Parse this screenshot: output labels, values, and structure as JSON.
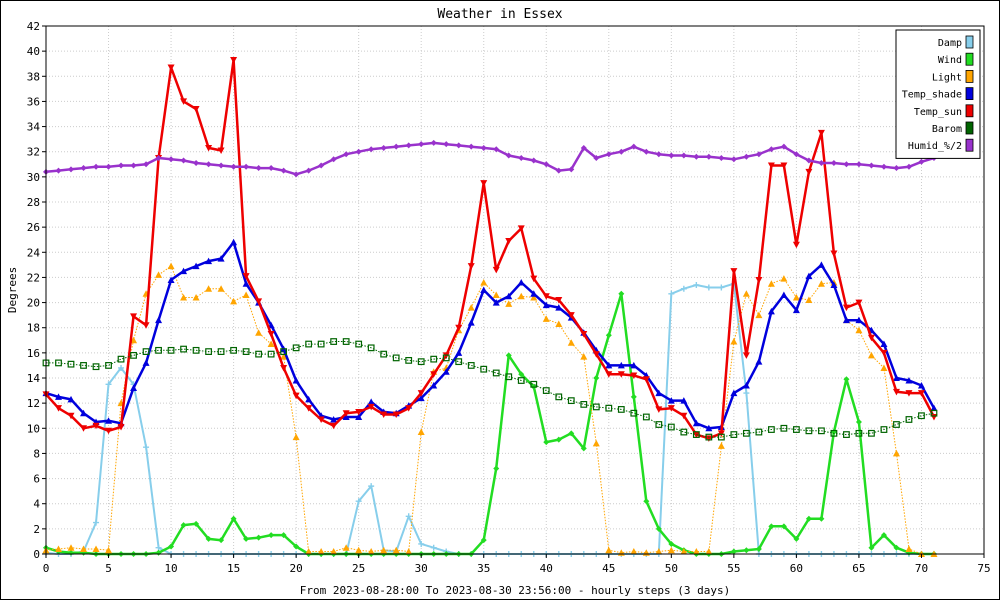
{
  "chart_data": {
    "type": "line",
    "title": "Weather in Essex",
    "xlabel": "From 2023-08-28:00 To 2023-08-30 23:56:00 - hourly steps (3 days)",
    "ylabel": "Degrees",
    "xlim": [
      0,
      75
    ],
    "ylim": [
      0,
      42
    ],
    "xticks": [
      "0",
      "5",
      "10",
      "15",
      "20",
      "25",
      "30",
      "35",
      "40",
      "45",
      "50",
      "55",
      "60",
      "65",
      "70",
      "75"
    ],
    "yticks": [
      "0",
      "2",
      "4",
      "6",
      "8",
      "10",
      "12",
      "14",
      "16",
      "18",
      "20",
      "22",
      "24",
      "26",
      "28",
      "30",
      "32",
      "34",
      "36",
      "38",
      "40",
      "42"
    ],
    "grid": true,
    "legend_position": "top-right",
    "series": [
      {
        "name": "Damp",
        "color": "#87ceeb",
        "marker": "plus",
        "style": "solid",
        "x": [
          0,
          1,
          2,
          3,
          4,
          5,
          6,
          7,
          8,
          9,
          10,
          11,
          12,
          13,
          14,
          15,
          16,
          17,
          18,
          19,
          20,
          21,
          22,
          23,
          24,
          25,
          26,
          27,
          28,
          29,
          30,
          31,
          32,
          33,
          34,
          35,
          36,
          37,
          38,
          39,
          40,
          41,
          42,
          43,
          44,
          45,
          46,
          47,
          48,
          49,
          50,
          51,
          52,
          53,
          54,
          55,
          56,
          57,
          58,
          59,
          60,
          61,
          62,
          63,
          64,
          65,
          66,
          67,
          68,
          69,
          70,
          71
        ],
        "values": [
          0.1,
          0,
          0,
          0.2,
          2.5,
          13.5,
          14.8,
          13.5,
          8.5,
          0.5,
          0,
          0,
          0,
          0,
          0,
          0,
          0,
          0,
          0,
          0,
          0,
          0,
          0,
          0,
          0,
          4.2,
          5.4,
          0.3,
          0.2,
          3,
          0.8,
          0.5,
          0.2,
          0,
          0,
          0,
          0,
          0,
          0,
          0,
          0,
          0,
          0,
          0,
          0,
          0,
          0,
          0,
          0,
          0,
          20.7,
          21.1,
          21.4,
          21.2,
          21.2,
          21.5,
          12.8,
          0,
          0,
          0,
          0,
          0,
          0,
          0,
          0,
          0,
          0,
          0,
          0,
          0,
          0,
          0
        ]
      },
      {
        "name": "Wind",
        "color": "#22dd22",
        "marker": "diamond",
        "style": "solid",
        "x": [
          0,
          1,
          2,
          3,
          4,
          5,
          6,
          7,
          8,
          9,
          10,
          11,
          12,
          13,
          14,
          15,
          16,
          17,
          18,
          19,
          20,
          21,
          22,
          23,
          24,
          25,
          26,
          27,
          28,
          29,
          30,
          31,
          32,
          33,
          34,
          35,
          36,
          37,
          38,
          39,
          40,
          41,
          42,
          43,
          44,
          45,
          46,
          47,
          48,
          49,
          50,
          51,
          52,
          53,
          54,
          55,
          56,
          57,
          58,
          59,
          60,
          61,
          62,
          63,
          64,
          65,
          66,
          67,
          68,
          69,
          70,
          71
        ],
        "values": [
          0.5,
          0.2,
          0.1,
          0.1,
          0,
          0,
          0,
          0,
          0,
          0.1,
          0.6,
          2.3,
          2.4,
          1.2,
          1.1,
          2.8,
          1.2,
          1.3,
          1.5,
          1.5,
          0.6,
          0,
          0,
          0,
          0,
          0,
          0,
          0,
          0,
          0,
          0,
          0,
          0,
          0,
          0,
          1.1,
          6.8,
          15.8,
          14.3,
          13.3,
          8.9,
          9.1,
          9.6,
          8.4,
          14,
          17.4,
          20.7,
          12.5,
          4.2,
          2,
          0.8,
          0.3,
          0,
          0,
          0,
          0.2,
          0.3,
          0.4,
          2.2,
          2.2,
          1.2,
          2.8,
          2.8,
          9.7,
          13.9,
          10.5,
          0.5,
          1.5,
          0.5,
          0.1,
          0,
          0
        ]
      },
      {
        "name": "Light",
        "color": "#ffa500",
        "marker": "triangle-up",
        "style": "dotted",
        "x": [
          0,
          1,
          2,
          3,
          4,
          5,
          6,
          7,
          8,
          9,
          10,
          11,
          12,
          13,
          14,
          15,
          16,
          17,
          18,
          19,
          20,
          21,
          22,
          23,
          24,
          25,
          26,
          27,
          28,
          29,
          30,
          31,
          32,
          33,
          34,
          35,
          36,
          37,
          38,
          39,
          40,
          41,
          42,
          43,
          44,
          45,
          46,
          47,
          48,
          49,
          50,
          51,
          52,
          53,
          54,
          55,
          56,
          57,
          58,
          59,
          60,
          61,
          62,
          63,
          64,
          65,
          66,
          67,
          68,
          69,
          70,
          71
        ],
        "values": [
          0.3,
          0.4,
          0.5,
          0.4,
          0.4,
          0.3,
          12,
          17,
          20.7,
          22.2,
          22.9,
          20.4,
          20.4,
          21.1,
          21.1,
          20.1,
          20.6,
          17.6,
          16.7,
          15.7,
          9.3,
          0.2,
          0.2,
          0.2,
          0.5,
          0.3,
          0.2,
          0.3,
          0.3,
          0.2,
          9.7,
          14.5,
          14.8,
          17.8,
          19.6,
          21.6,
          20.6,
          19.9,
          20.5,
          20.4,
          18.7,
          18.3,
          16.8,
          15.7,
          8.8,
          0.3,
          0.1,
          0.2,
          0.1,
          0.2,
          0.3,
          0.2,
          0.2,
          0.2,
          8.6,
          16.9,
          20.7,
          19,
          21.5,
          21.9,
          20.4,
          20.2,
          21.5,
          21.6,
          18.6,
          17.8,
          15.8,
          14.8,
          8,
          0.4,
          0,
          0
        ]
      },
      {
        "name": "Temp_shade",
        "color": "#0000dd",
        "marker": "triangle-up",
        "style": "solid",
        "x": [
          0,
          1,
          2,
          3,
          4,
          5,
          6,
          7,
          8,
          9,
          10,
          11,
          12,
          13,
          14,
          15,
          16,
          17,
          18,
          19,
          20,
          21,
          22,
          23,
          24,
          25,
          26,
          27,
          28,
          29,
          30,
          31,
          32,
          33,
          34,
          35,
          36,
          37,
          38,
          39,
          40,
          41,
          42,
          43,
          44,
          45,
          46,
          47,
          48,
          49,
          50,
          51,
          52,
          53,
          54,
          55,
          56,
          57,
          58,
          59,
          60,
          61,
          62,
          63,
          64,
          65,
          66,
          67,
          68,
          69,
          70,
          71
        ],
        "values": [
          12.8,
          12.5,
          12.3,
          11.2,
          10.5,
          10.6,
          10.4,
          13.2,
          15.2,
          18.6,
          21.8,
          22.5,
          22.9,
          23.3,
          23.5,
          24.8,
          21.5,
          20,
          18.2,
          16.3,
          13.8,
          12.3,
          11,
          10.7,
          10.9,
          10.9,
          12.1,
          11.3,
          11.2,
          11.8,
          12.4,
          13.4,
          14.5,
          16,
          18.4,
          21,
          20,
          20.5,
          21.6,
          20.7,
          19.8,
          19.6,
          18.8,
          17.6,
          16.2,
          15,
          15,
          15,
          14.2,
          12.8,
          12.2,
          12.2,
          10.4,
          10,
          10.1,
          12.8,
          13.4,
          15.3,
          19.3,
          20.6,
          19.4,
          22.1,
          23,
          21.4,
          18.6,
          18.6,
          17.8,
          16.7,
          14,
          13.8,
          13.4,
          11.6
        ]
      },
      {
        "name": "Temp_sun",
        "color": "#ee0000",
        "marker": "triangle-down",
        "style": "solid",
        "x": [
          0,
          1,
          2,
          3,
          4,
          5,
          6,
          7,
          8,
          9,
          10,
          11,
          12,
          13,
          14,
          15,
          16,
          17,
          18,
          19,
          20,
          21,
          22,
          23,
          24,
          25,
          26,
          27,
          28,
          29,
          30,
          31,
          32,
          33,
          34,
          35,
          36,
          37,
          38,
          39,
          40,
          41,
          42,
          43,
          44,
          45,
          46,
          47,
          48,
          49,
          50,
          51,
          52,
          53,
          54,
          55,
          56,
          57,
          58,
          59,
          60,
          61,
          62,
          63,
          64,
          65,
          66,
          67,
          68,
          69,
          70,
          71
        ],
        "values": [
          12.7,
          11.6,
          11,
          10,
          10.2,
          9.8,
          10.1,
          18.9,
          18.2,
          31.5,
          38.7,
          36,
          35.4,
          32.3,
          32.1,
          39.3,
          22.1,
          20.1,
          17.5,
          14.8,
          12.6,
          11.6,
          10.7,
          10.2,
          11.2,
          11.3,
          11.7,
          11.1,
          11.1,
          11.6,
          12.8,
          14.3,
          15.8,
          18,
          22.9,
          29.5,
          22.6,
          24.9,
          25.9,
          21.9,
          20.5,
          20.2,
          19,
          17.5,
          15.9,
          14.3,
          14.3,
          14.2,
          13.9,
          11.5,
          11.6,
          11,
          9.5,
          9.2,
          9.6,
          22.5,
          15.8,
          21.8,
          30.9,
          30.9,
          24.6,
          30.4,
          33.5,
          23.9,
          19.6,
          20,
          17.2,
          16,
          12.9,
          12.8,
          12.8,
          10.9
        ]
      },
      {
        "name": "Barom",
        "color": "#006400",
        "marker": "square-open",
        "style": "dotted",
        "x": [
          0,
          1,
          2,
          3,
          4,
          5,
          6,
          7,
          8,
          9,
          10,
          11,
          12,
          13,
          14,
          15,
          16,
          17,
          18,
          19,
          20,
          21,
          22,
          23,
          24,
          25,
          26,
          27,
          28,
          29,
          30,
          31,
          32,
          33,
          34,
          35,
          36,
          37,
          38,
          39,
          40,
          41,
          42,
          43,
          44,
          45,
          46,
          47,
          48,
          49,
          50,
          51,
          52,
          53,
          54,
          55,
          56,
          57,
          58,
          59,
          60,
          61,
          62,
          63,
          64,
          65,
          66,
          67,
          68,
          69,
          70,
          71
        ],
        "values": [
          15.2,
          15.2,
          15.1,
          15,
          14.9,
          15,
          15.5,
          15.8,
          16.1,
          16.2,
          16.2,
          16.3,
          16.2,
          16.1,
          16.1,
          16.2,
          16.1,
          15.9,
          15.9,
          16.1,
          16.4,
          16.7,
          16.7,
          16.9,
          16.9,
          16.7,
          16.4,
          15.9,
          15.6,
          15.4,
          15.3,
          15.5,
          15.6,
          15.3,
          15,
          14.7,
          14.4,
          14.1,
          13.8,
          13.5,
          13,
          12.5,
          12.2,
          11.9,
          11.7,
          11.6,
          11.5,
          11.2,
          10.9,
          10.3,
          10.1,
          9.7,
          9.5,
          9.3,
          9.3,
          9.5,
          9.6,
          9.7,
          9.9,
          10,
          9.9,
          9.8,
          9.8,
          9.6,
          9.5,
          9.6,
          9.6,
          9.9,
          10.3,
          10.7,
          11,
          11.2
        ]
      },
      {
        "name": "Humid_%/2",
        "color": "#9932cc",
        "marker": "diamond",
        "style": "solid",
        "x": [
          0,
          1,
          2,
          3,
          4,
          5,
          6,
          7,
          8,
          9,
          10,
          11,
          12,
          13,
          14,
          15,
          16,
          17,
          18,
          19,
          20,
          21,
          22,
          23,
          24,
          25,
          26,
          27,
          28,
          29,
          30,
          31,
          32,
          33,
          34,
          35,
          36,
          37,
          38,
          39,
          40,
          41,
          42,
          43,
          44,
          45,
          46,
          47,
          48,
          49,
          50,
          51,
          52,
          53,
          54,
          55,
          56,
          57,
          58,
          59,
          60,
          61,
          62,
          63,
          64,
          65,
          66,
          67,
          68,
          69,
          70,
          71
        ],
        "values": [
          30.4,
          30.5,
          30.6,
          30.7,
          30.8,
          30.8,
          30.9,
          30.9,
          31,
          31.5,
          31.4,
          31.3,
          31.1,
          31,
          30.9,
          30.8,
          30.8,
          30.7,
          30.7,
          30.5,
          30.2,
          30.5,
          30.9,
          31.4,
          31.8,
          32,
          32.2,
          32.3,
          32.4,
          32.5,
          32.6,
          32.7,
          32.6,
          32.5,
          32.4,
          32.3,
          32.2,
          31.7,
          31.5,
          31.3,
          31,
          30.5,
          30.6,
          32.3,
          31.5,
          31.8,
          32,
          32.4,
          32,
          31.8,
          31.7,
          31.7,
          31.6,
          31.6,
          31.5,
          31.4,
          31.6,
          31.8,
          32.2,
          32.4,
          31.8,
          31.3,
          31.1,
          31.1,
          31,
          31,
          30.9,
          30.8,
          30.7,
          30.8,
          31.2,
          31.5
        ]
      }
    ]
  }
}
